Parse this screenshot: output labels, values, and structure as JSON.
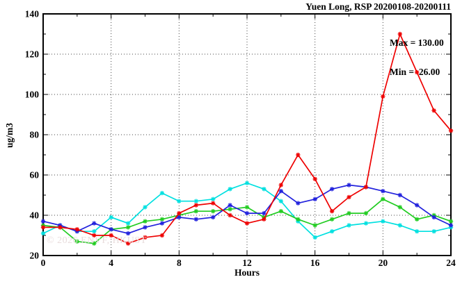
{
  "title": "Yuen Long, RSP 20200108-20200111",
  "annotation": {
    "max_label": "Max = 130.00",
    "min_label": "Min =  26.00"
  },
  "watermark": "© 2026 ENVF, HKUST",
  "chart_data": {
    "type": "line",
    "title": "Yuen Long, RSP 20200108-20200111",
    "xlabel": "Hours",
    "ylabel": "ug/m3",
    "xlim": [
      0,
      24
    ],
    "ylim": [
      20,
      140
    ],
    "x_major_ticks": [
      0,
      4,
      8,
      12,
      16,
      20,
      24
    ],
    "x_minor_step": 2,
    "y_major_ticks": [
      20,
      40,
      60,
      80,
      100,
      120,
      140
    ],
    "y_minor_step": 10,
    "grid": "dotted-at-major-ticks",
    "legend": "none",
    "marker": "asterisk",
    "x": [
      0,
      1,
      2,
      3,
      4,
      5,
      6,
      7,
      8,
      9,
      10,
      11,
      12,
      13,
      14,
      15,
      16,
      17,
      18,
      19,
      20,
      21,
      22,
      23,
      24
    ],
    "series": [
      {
        "name": "series-cyan",
        "color": "#00e0e0",
        "values": [
          31,
          35,
          32,
          32,
          39,
          36,
          44,
          51,
          47,
          47,
          48,
          53,
          56,
          53,
          47,
          37,
          29,
          32,
          35,
          36,
          37,
          35,
          32,
          32,
          34
        ]
      },
      {
        "name": "series-green",
        "color": "#22cc22",
        "values": [
          35,
          34,
          27,
          26,
          33,
          34,
          37,
          38,
          40,
          42,
          42,
          43,
          44,
          39,
          42,
          38,
          35,
          38,
          41,
          41,
          48,
          44,
          38,
          40,
          37
        ]
      },
      {
        "name": "series-blue",
        "color": "#2222dd",
        "values": [
          37,
          35,
          32,
          36,
          33,
          31,
          34,
          36,
          39,
          38,
          39,
          45,
          41,
          41,
          52,
          46,
          48,
          53,
          55,
          54,
          52,
          50,
          45,
          39,
          35
        ]
      },
      {
        "name": "series-red",
        "color": "#ee0000",
        "values": [
          34,
          34,
          33,
          30,
          30,
          26,
          29,
          30,
          41,
          45,
          46,
          40,
          36,
          38,
          55,
          70,
          58,
          42,
          49,
          54,
          99,
          130,
          111,
          92,
          82
        ]
      }
    ],
    "stats": {
      "max": 130.0,
      "min": 26.0
    }
  }
}
